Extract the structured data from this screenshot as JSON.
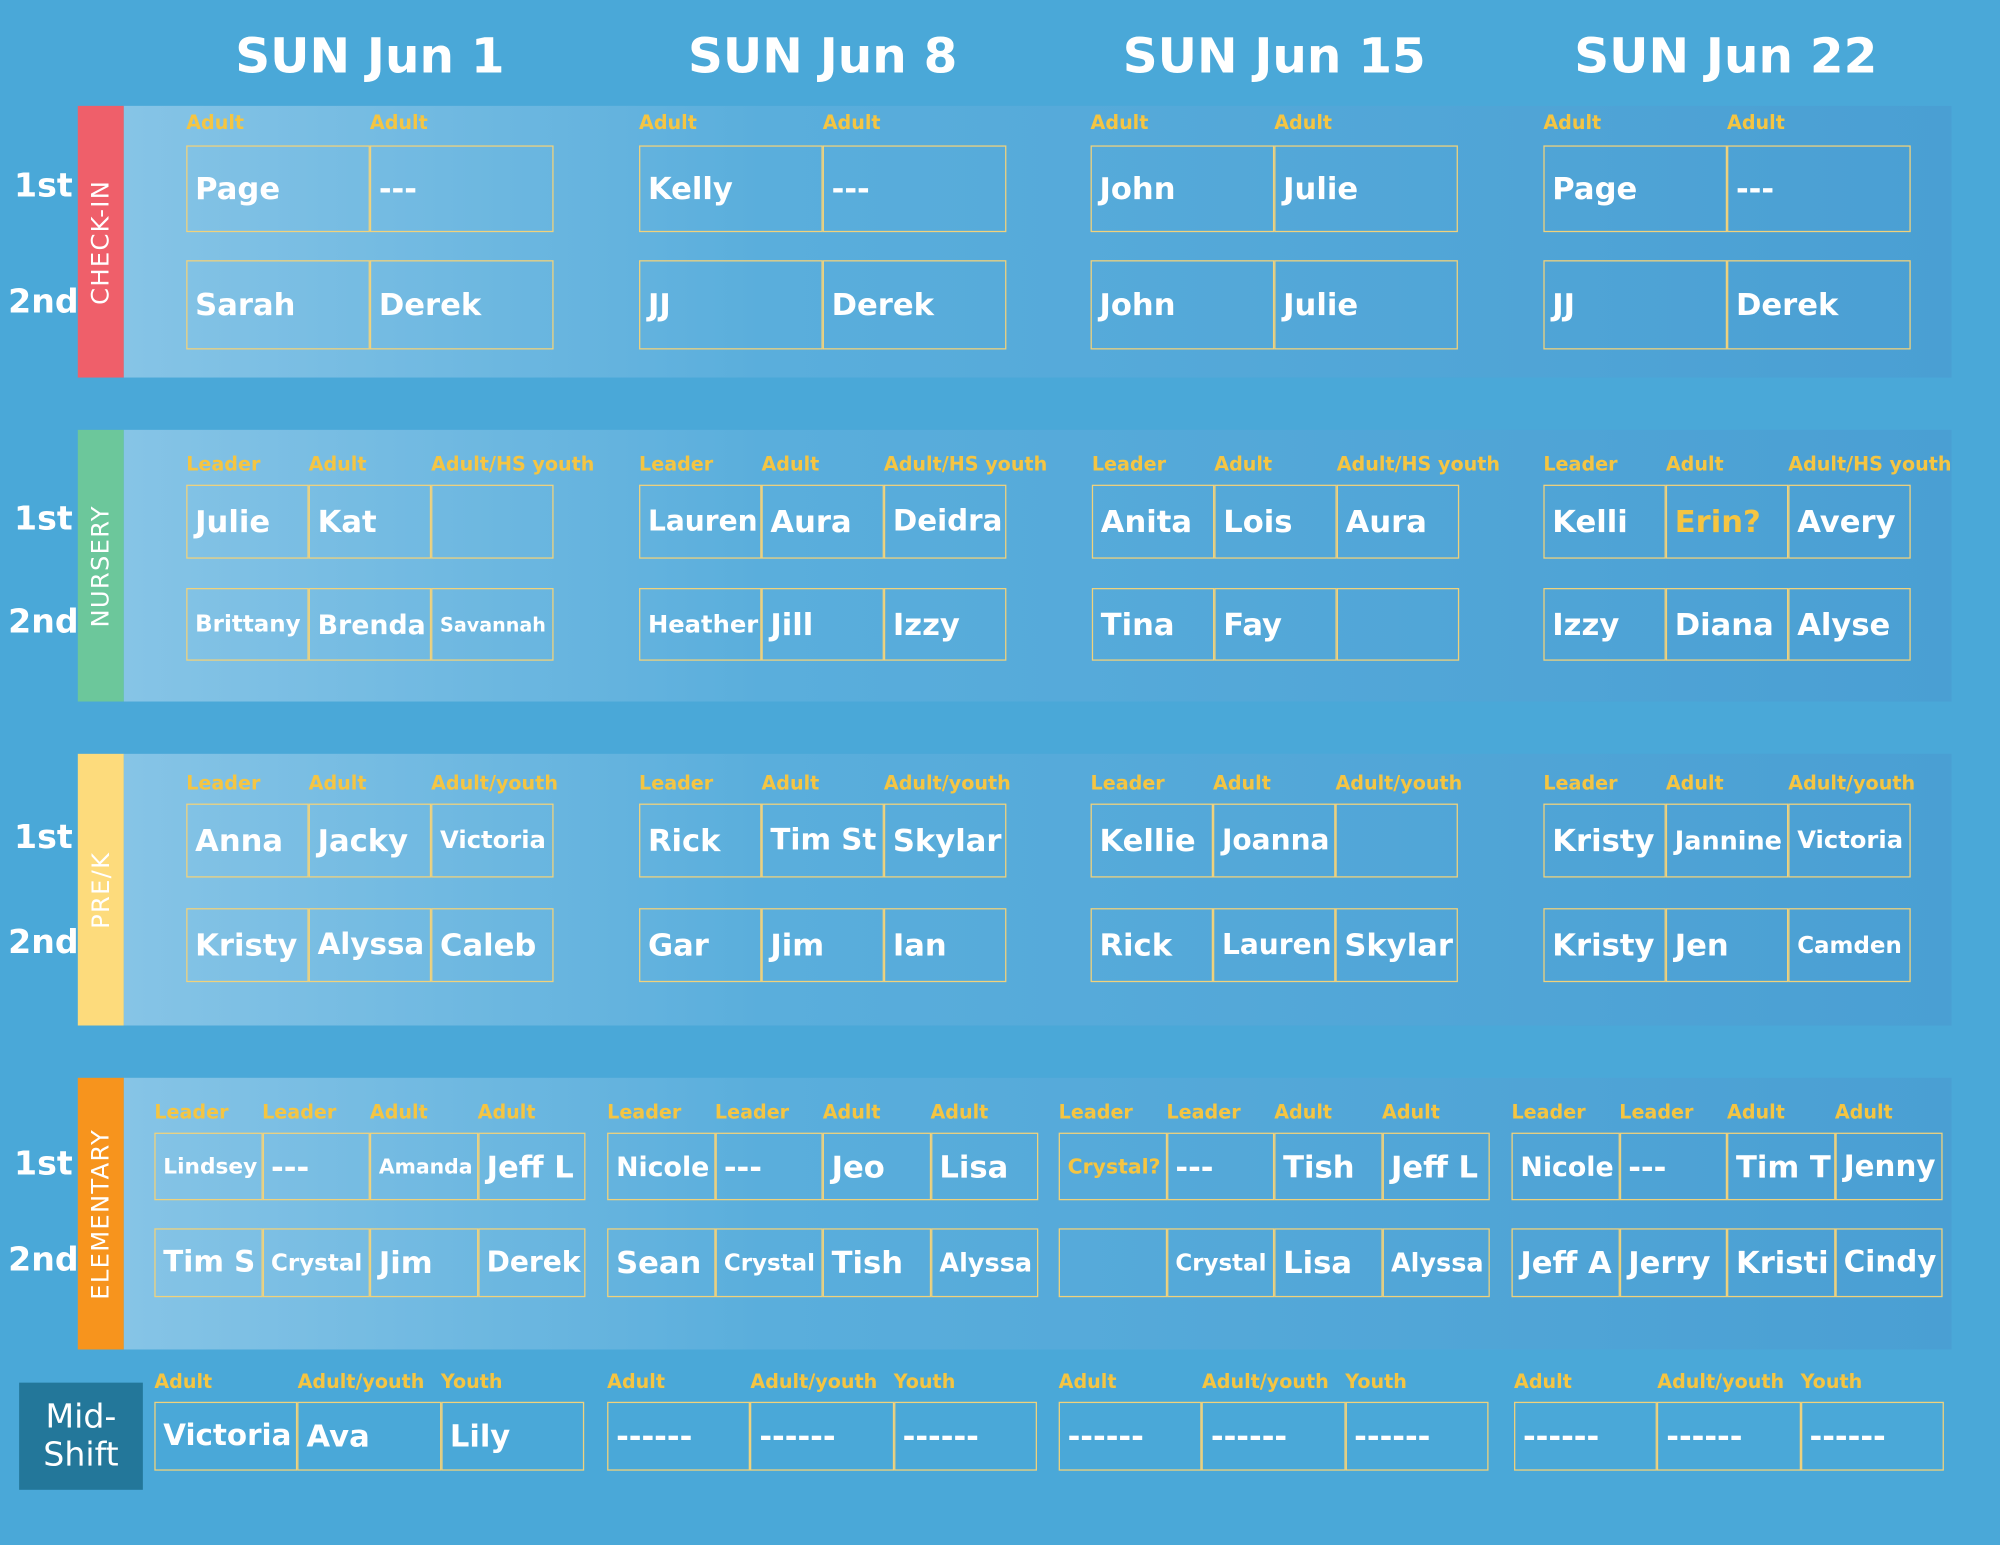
{
  "dates": [
    "SUN Jun 1",
    "SUN Jun 8",
    "SUN Jun 15",
    "SUN Jun 22"
  ],
  "services": [
    "1st",
    "2nd"
  ],
  "sections": [
    {
      "label": "CHECK-IN",
      "color": "#ef5f6a",
      "weeks": [
        {
          "roles": [
            "Adult",
            "Adult"
          ],
          "rows": [
            [
              "Page",
              "---"
            ],
            [
              "Sarah",
              "Derek"
            ]
          ]
        },
        {
          "roles": [
            "Adult",
            "Adult"
          ],
          "rows": [
            [
              "Kelly",
              "---"
            ],
            [
              "JJ",
              "Derek"
            ]
          ]
        },
        {
          "roles": [
            "Adult",
            "Adult"
          ],
          "rows": [
            [
              "John",
              "Julie"
            ],
            [
              "John",
              "Julie"
            ]
          ]
        },
        {
          "roles": [
            "Adult",
            "Adult"
          ],
          "rows": [
            [
              "Page",
              "---"
            ],
            [
              "JJ",
              "Derek"
            ]
          ]
        }
      ]
    },
    {
      "label": "NURSERY",
      "color": "#6cc79b",
      "weeks": [
        {
          "roles": [
            "Leader",
            "Adult",
            "Adult/HS youth"
          ],
          "rows": [
            [
              "Julie",
              "Kat",
              null
            ],
            [
              "Brittany",
              "Brenda",
              "Savannah"
            ]
          ]
        },
        {
          "roles": [
            "Leader",
            "Adult",
            "Adult/HS youth"
          ],
          "rows": [
            [
              "Lauren",
              "Aura",
              "Deidra"
            ],
            [
              "Heather",
              "Jill",
              "Izzy"
            ]
          ]
        },
        {
          "roles": [
            "Leader",
            "Adult",
            "Adult/HS youth"
          ],
          "rows": [
            [
              "Anita",
              "Lois",
              "Aura"
            ],
            [
              "Tina",
              "Fay",
              null
            ]
          ]
        },
        {
          "roles": [
            "Leader",
            "Adult",
            "Adult/HS youth"
          ],
          "rows": [
            [
              "Kelli",
              {
                "text": "Erin?",
                "color": "#f5c542"
              },
              "Avery"
            ],
            [
              "Izzy",
              "Diana",
              "Alyse"
            ]
          ]
        }
      ]
    },
    {
      "label": "PRE/K",
      "color": "#fddb7c",
      "weeks": [
        {
          "roles": [
            "Leader",
            "Adult",
            "Adult/youth"
          ],
          "rows": [
            [
              "Anna",
              "Jacky",
              "Victoria"
            ],
            [
              "Kristy",
              "Alyssa",
              "Caleb"
            ]
          ]
        },
        {
          "roles": [
            "Leader",
            "Adult",
            "Adult/youth"
          ],
          "rows": [
            [
              "Rick",
              "Tim St",
              "Skylar"
            ],
            [
              "Gar",
              "Jim",
              "Ian"
            ]
          ]
        },
        {
          "roles": [
            "Leader",
            "Adult",
            "Adult/youth"
          ],
          "rows": [
            [
              "Kellie",
              "Joanna",
              null
            ],
            [
              "Rick",
              "Lauren",
              "Skylar"
            ]
          ]
        },
        {
          "roles": [
            "Leader",
            "Adult",
            "Adult/youth"
          ],
          "rows": [
            [
              "Kristy",
              "Jannine",
              "Victoria"
            ],
            [
              "Kristy",
              "Jen",
              "Camden"
            ]
          ]
        }
      ]
    },
    {
      "label": "ELEMENTARY",
      "color": "#f7941d",
      "weeks": [
        {
          "roles": [
            "Leader",
            "Leader",
            "Adult",
            "Adult"
          ],
          "rows": [
            [
              "Lindsey",
              "---",
              "Amanda",
              "Jeff L"
            ],
            [
              "Tim S",
              "Crystal",
              "Jim",
              "Derek"
            ]
          ]
        },
        {
          "roles": [
            "Leader",
            "Leader",
            "Adult",
            "Adult"
          ],
          "rows": [
            [
              "Nicole",
              "---",
              "Jeo",
              "Lisa"
            ],
            [
              "Sean",
              "Crystal",
              "Tish",
              "Alyssa"
            ]
          ]
        },
        {
          "roles": [
            "Leader",
            "Leader",
            "Adult",
            "Adult"
          ],
          "rows": [
            [
              {
                "text": "Crystal?",
                "color": "#f5c542"
              },
              "---",
              "Tish",
              "Jeff L"
            ],
            [
              null,
              "Crystal",
              "Lisa",
              "Alyssa"
            ]
          ]
        },
        {
          "roles": [
            "Leader",
            "Leader",
            "Adult",
            "Adult"
          ],
          "rows": [
            [
              "Nicole",
              "---",
              "Tim T",
              "Jenny"
            ],
            [
              "Jeff A",
              "Jerry",
              "Kristi",
              "Cindy"
            ]
          ]
        }
      ]
    }
  ],
  "midshift": {
    "label": [
      "Mid-",
      "Shift"
    ],
    "weeks": [
      {
        "roles": [
          "Adult",
          "Adult/youth",
          "Youth"
        ],
        "rows": [
          [
            "Victoria",
            "Ava",
            "Lily"
          ]
        ]
      },
      {
        "roles": [
          "Adult",
          "Adult/youth",
          "Youth"
        ],
        "rows": [
          [
            "------",
            "------",
            "------"
          ]
        ]
      },
      {
        "roles": [
          "Adult",
          "Adult/youth",
          "Youth"
        ],
        "rows": [
          [
            "------",
            "------",
            "------"
          ]
        ]
      },
      {
        "roles": [
          "Adult",
          "Adult/youth",
          "Youth"
        ],
        "rows": [
          [
            "------",
            "------",
            "------"
          ]
        ]
      }
    ]
  }
}
